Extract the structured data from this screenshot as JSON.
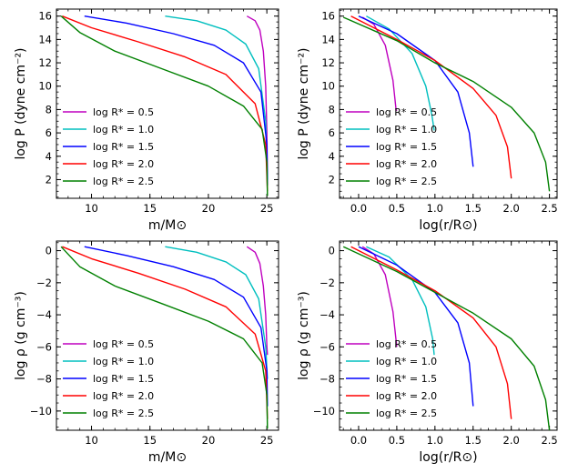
{
  "chart_data": [
    {
      "type": "line",
      "xlabel": "m/M⊙",
      "ylabel": "log P (dyne cm⁻²)",
      "xlim": [
        7,
        26
      ],
      "ylim": [
        0.4,
        16.6
      ],
      "xticks": [
        "10",
        "15",
        "20",
        "25"
      ],
      "yticks": [
        "2",
        "4",
        "6",
        "8",
        "10",
        "12",
        "14",
        "16"
      ],
      "legend_position": "lower-left",
      "series": [
        {
          "name": "log R* = 0.5",
          "color": "#bf00bf",
          "x": [
            23.3,
            24.0,
            24.4,
            24.7,
            24.9,
            25.0,
            25.05
          ],
          "y": [
            16.0,
            15.6,
            14.8,
            13.0,
            10.0,
            6.0,
            2.0
          ]
        },
        {
          "name": "log R* = 1.0",
          "color": "#00bfbf",
          "x": [
            16.3,
            19.0,
            21.5,
            23.2,
            24.3,
            24.9,
            25.05
          ],
          "y": [
            16.0,
            15.6,
            14.8,
            13.6,
            11.5,
            7.0,
            2.0
          ]
        },
        {
          "name": "log R* = 1.5",
          "color": "#0000ff",
          "x": [
            9.4,
            13.0,
            17.0,
            20.5,
            23.0,
            24.5,
            25.0,
            25.05
          ],
          "y": [
            16.0,
            15.4,
            14.5,
            13.5,
            12.0,
            9.5,
            5.0,
            1.5
          ]
        },
        {
          "name": "log R* = 2.0",
          "color": "#ff0000",
          "x": [
            7.5,
            10.0,
            14.0,
            18.0,
            21.5,
            24.0,
            24.9,
            25.05
          ],
          "y": [
            16.0,
            15.0,
            13.8,
            12.5,
            11.0,
            8.5,
            5.0,
            1.0
          ]
        },
        {
          "name": "log R* = 2.5",
          "color": "#008000",
          "x": [
            7.4,
            9.0,
            12.0,
            16.0,
            20.0,
            23.0,
            24.6,
            25.0,
            25.05
          ],
          "y": [
            16.0,
            14.6,
            13.0,
            11.5,
            10.0,
            8.3,
            6.3,
            3.5,
            0.6
          ]
        }
      ]
    },
    {
      "type": "line",
      "xlabel": "log(r/R⊙)",
      "ylabel": "log P (dyne cm⁻²)",
      "xlim": [
        -0.25,
        2.6
      ],
      "ylim": [
        0.4,
        16.6
      ],
      "xticks": [
        "0.0",
        "0.5",
        "1.0",
        "1.5",
        "2.0",
        "2.5"
      ],
      "yticks": [
        "2",
        "4",
        "6",
        "8",
        "10",
        "12",
        "14",
        "16"
      ],
      "legend_position": "lower-left",
      "series": [
        {
          "name": "log R* = 0.5",
          "color": "#bf00bf",
          "x": [
            0.05,
            0.2,
            0.35,
            0.45,
            0.49,
            0.5
          ],
          "y": [
            15.9,
            15.3,
            13.5,
            10.5,
            8.0,
            7.9
          ]
        },
        {
          "name": "log R* = 1.0",
          "color": "#00bfbf",
          "x": [
            0.1,
            0.4,
            0.7,
            0.88,
            0.96,
            0.99
          ],
          "y": [
            16.0,
            14.9,
            12.8,
            10.0,
            7.5,
            6.2
          ]
        },
        {
          "name": "log R* = 1.5",
          "color": "#0000ff",
          "x": [
            0.0,
            0.5,
            1.0,
            1.3,
            1.45,
            1.5
          ],
          "y": [
            16.0,
            14.5,
            12.2,
            9.5,
            6.0,
            3.1
          ]
        },
        {
          "name": "log R* = 2.0",
          "color": "#ff0000",
          "x": [
            -0.1,
            0.5,
            1.0,
            1.5,
            1.8,
            1.95,
            2.0
          ],
          "y": [
            16.0,
            14.0,
            12.2,
            9.8,
            7.5,
            4.8,
            2.1
          ]
        },
        {
          "name": "log R* = 2.5",
          "color": "#008000",
          "x": [
            -0.2,
            0.5,
            1.0,
            1.5,
            2.0,
            2.3,
            2.45,
            2.5
          ],
          "y": [
            15.9,
            13.9,
            12.0,
            10.4,
            8.2,
            6.0,
            3.5,
            1.0
          ]
        }
      ]
    },
    {
      "type": "line",
      "xlabel": "m/M⊙",
      "ylabel": "log ρ (g cm⁻³)",
      "xlim": [
        7,
        26
      ],
      "ylim": [
        -11.2,
        0.6
      ],
      "xticks": [
        "10",
        "15",
        "20",
        "25"
      ],
      "yticks": [
        "0",
        "−2",
        "−4",
        "−6",
        "−8",
        "−10"
      ],
      "legend_position": "lower-left",
      "series": [
        {
          "name": "log R* = 0.5",
          "color": "#bf00bf",
          "x": [
            23.3,
            24.0,
            24.4,
            24.7,
            24.9,
            25.0,
            25.05
          ],
          "y": [
            0.25,
            -0.1,
            -0.8,
            -2.2,
            -4.0,
            -6.0,
            -6.5
          ]
        },
        {
          "name": "log R* = 1.0",
          "color": "#00bfbf",
          "x": [
            16.3,
            19.0,
            21.5,
            23.2,
            24.3,
            24.9,
            25.05
          ],
          "y": [
            0.25,
            -0.1,
            -0.7,
            -1.5,
            -3.0,
            -6.0,
            -8.0
          ]
        },
        {
          "name": "log R* = 1.5",
          "color": "#0000ff",
          "x": [
            9.4,
            13.0,
            17.0,
            20.5,
            23.0,
            24.5,
            25.0,
            25.05
          ],
          "y": [
            0.25,
            -0.3,
            -1.0,
            -1.8,
            -2.9,
            -4.8,
            -7.5,
            -9.7
          ]
        },
        {
          "name": "log R* = 2.0",
          "color": "#ff0000",
          "x": [
            7.5,
            10.0,
            14.0,
            18.0,
            21.5,
            24.0,
            24.9,
            25.05
          ],
          "y": [
            0.25,
            -0.5,
            -1.4,
            -2.4,
            -3.5,
            -5.2,
            -7.5,
            -10.5
          ]
        },
        {
          "name": "log R* = 2.5",
          "color": "#008000",
          "x": [
            7.4,
            9.0,
            12.0,
            16.0,
            20.0,
            23.0,
            24.6,
            25.0,
            25.05
          ],
          "y": [
            0.25,
            -1.0,
            -2.2,
            -3.3,
            -4.4,
            -5.5,
            -7.0,
            -9.0,
            -11.1
          ]
        }
      ]
    },
    {
      "type": "line",
      "xlabel": "log(r/R⊙)",
      "ylabel": "log ρ (g cm⁻³)",
      "xlim": [
        -0.25,
        2.6
      ],
      "ylim": [
        -11.2,
        0.6
      ],
      "xticks": [
        "0.0",
        "0.5",
        "1.0",
        "1.5",
        "2.0",
        "2.5"
      ],
      "yticks": [
        "0",
        "−2",
        "−4",
        "−6",
        "−8",
        "−10"
      ],
      "legend_position": "lower-left",
      "series": [
        {
          "name": "log R* = 0.5",
          "color": "#bf00bf",
          "x": [
            0.05,
            0.2,
            0.35,
            0.45,
            0.5
          ],
          "y": [
            0.25,
            -0.2,
            -1.5,
            -3.8,
            -6.0
          ]
        },
        {
          "name": "log R* = 1.0",
          "color": "#00bfbf",
          "x": [
            0.1,
            0.4,
            0.7,
            0.88,
            0.97,
            0.99
          ],
          "y": [
            0.25,
            -0.4,
            -1.8,
            -3.5,
            -5.5,
            -6.5
          ]
        },
        {
          "name": "log R* = 1.5",
          "color": "#0000ff",
          "x": [
            0.0,
            0.5,
            1.0,
            1.3,
            1.45,
            1.5
          ],
          "y": [
            0.25,
            -0.9,
            -2.6,
            -4.5,
            -7.0,
            -9.7
          ]
        },
        {
          "name": "log R* = 2.0",
          "color": "#ff0000",
          "x": [
            -0.1,
            0.5,
            1.0,
            1.5,
            1.8,
            1.95,
            2.0
          ],
          "y": [
            0.25,
            -1.2,
            -2.5,
            -4.2,
            -6.0,
            -8.3,
            -10.5
          ]
        },
        {
          "name": "log R* = 2.5",
          "color": "#008000",
          "x": [
            -0.2,
            0.5,
            1.0,
            1.5,
            2.0,
            2.3,
            2.45,
            2.5
          ],
          "y": [
            0.25,
            -1.3,
            -2.6,
            -3.9,
            -5.5,
            -7.2,
            -9.3,
            -11.2
          ]
        }
      ]
    }
  ]
}
